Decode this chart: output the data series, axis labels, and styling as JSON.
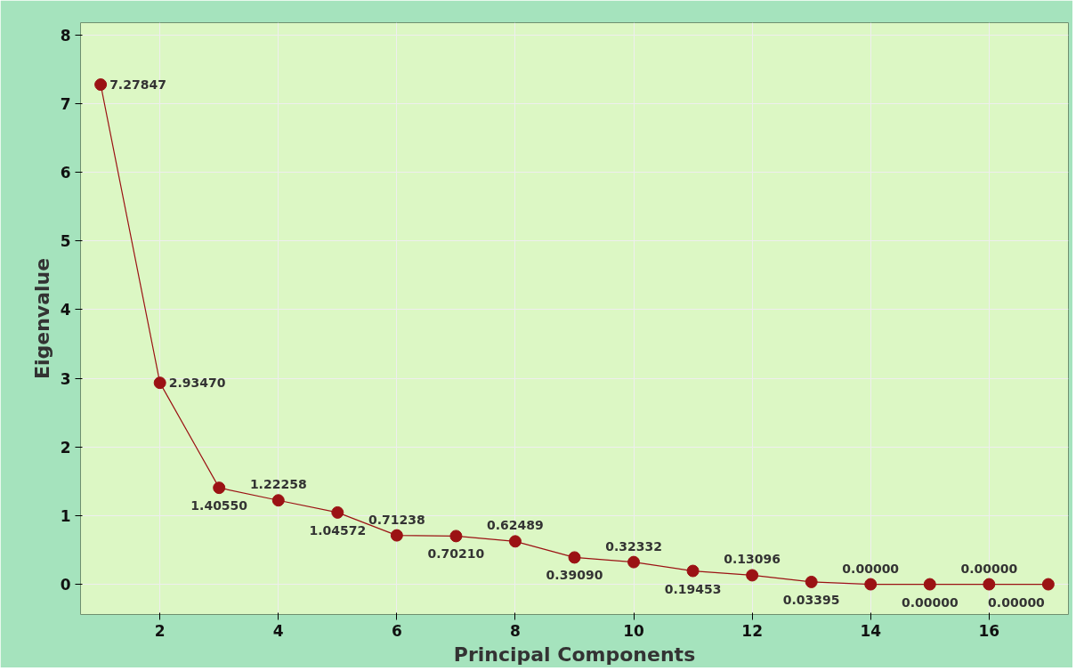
{
  "chart_data": {
    "type": "line",
    "xlabel": "Principal Components",
    "ylabel": "Eigenvalue",
    "x": [
      1,
      2,
      3,
      4,
      5,
      6,
      7,
      8,
      9,
      10,
      11,
      12,
      13,
      14,
      15,
      16,
      17
    ],
    "series": [
      {
        "color": "#9b1214",
        "values": [
          7.27847,
          2.9347,
          1.4055,
          1.22258,
          1.04572,
          0.71238,
          0.7021,
          0.62489,
          0.3909,
          0.32332,
          0.19453,
          0.13096,
          0.03395,
          0.0,
          0.0,
          0.0,
          0.0
        ],
        "value_labels": [
          "7.27847",
          "2.93470",
          "1.40550",
          "1.22258",
          "1.04572",
          "0.71238",
          "0.70210",
          "0.62489",
          "0.39090",
          "0.32332",
          "0.19453",
          "0.13096",
          "0.03395",
          "0.00000",
          "0.00000",
          "0.00000",
          "0.00000"
        ]
      }
    ],
    "xlim": [
      0.66,
      17.34
    ],
    "ylim": [
      -0.44,
      8.18
    ],
    "xticks": [
      2,
      4,
      6,
      8,
      10,
      12,
      14,
      16
    ],
    "yticks": [
      0,
      1,
      2,
      3,
      4,
      5,
      6,
      7,
      8
    ],
    "grid": true,
    "marker": "circle",
    "line_style": "solid"
  }
}
